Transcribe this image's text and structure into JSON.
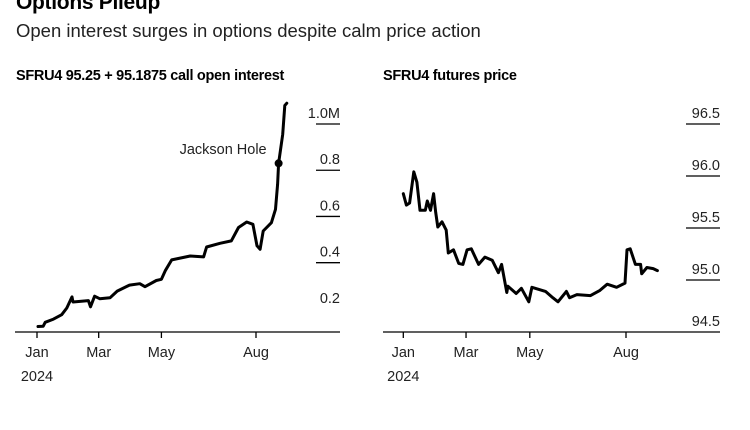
{
  "title": "Options Pileup",
  "subtitle": "Open interest surges in options despite calm price action",
  "chart_data": [
    {
      "type": "line",
      "title": "SFRU4 95.25 + 95.1875 call open interest",
      "x_tick_labels": [
        "Jan",
        "Mar",
        "May",
        "Aug"
      ],
      "x_ticks": [
        "2024-01-01",
        "2024-03-01",
        "2024-05-01",
        "2024-08-01"
      ],
      "year_label": "2024",
      "y_tick_labels": [
        "0.2",
        "0.4",
        "0.6",
        "0.8",
        "1.0M"
      ],
      "y_ticks": [
        0.2,
        0.4,
        0.6,
        0.8,
        1.0
      ],
      "ylim": [
        0.1,
        1.1
      ],
      "xlim": [
        "2023-12-20",
        "2024-10-05"
      ],
      "unit": "M",
      "color": "#000000",
      "annotation": {
        "label": "Jackson Hole",
        "date": "2024-08-23",
        "value": 0.83
      },
      "x": [
        "2024-01-02",
        "2024-01-07",
        "2024-01-09",
        "2024-01-17",
        "2024-01-25",
        "2024-01-30",
        "2024-02-04",
        "2024-02-05",
        "2024-02-20",
        "2024-02-22",
        "2024-02-26",
        "2024-03-02",
        "2024-03-12",
        "2024-03-19",
        "2024-03-31",
        "2024-04-10",
        "2024-04-15",
        "2024-04-26",
        "2024-05-01",
        "2024-05-05",
        "2024-05-11",
        "2024-05-29",
        "2024-06-11",
        "2024-06-14",
        "2024-06-27",
        "2024-07-08",
        "2024-07-15",
        "2024-07-23",
        "2024-07-29",
        "2024-08-02",
        "2024-08-05",
        "2024-08-08",
        "2024-08-16",
        "2024-08-20",
        "2024-08-22",
        "2024-08-23",
        "2024-08-27",
        "2024-08-29",
        "2024-08-31"
      ],
      "values": [
        0.124,
        0.125,
        0.142,
        0.156,
        0.175,
        0.204,
        0.252,
        0.23,
        0.236,
        0.209,
        0.255,
        0.244,
        0.248,
        0.277,
        0.303,
        0.309,
        0.296,
        0.323,
        0.328,
        0.367,
        0.412,
        0.429,
        0.425,
        0.468,
        0.484,
        0.494,
        0.552,
        0.576,
        0.566,
        0.473,
        0.458,
        0.537,
        0.573,
        0.631,
        0.739,
        0.83,
        0.955,
        1.08,
        1.09
      ]
    },
    {
      "type": "line",
      "title": "SFRU4 futures price",
      "x_tick_labels": [
        "Jan",
        "Mar",
        "May",
        "Aug"
      ],
      "x_ticks": [
        "2024-01-01",
        "2024-03-01",
        "2024-05-01",
        "2024-08-01"
      ],
      "year_label": "2024",
      "y_tick_labels": [
        "94.5",
        "95.0",
        "95.5",
        "96.0",
        "96.5"
      ],
      "y_ticks": [
        94.5,
        95.0,
        95.5,
        96.0,
        96.5
      ],
      "ylim": [
        94.5,
        96.6
      ],
      "xlim": [
        "2023-12-18",
        "2024-10-03"
      ],
      "color": "#000000",
      "x": [
        "2024-01-01",
        "2024-01-04",
        "2024-01-07",
        "2024-01-11",
        "2024-01-14",
        "2024-01-17",
        "2024-01-22",
        "2024-01-24",
        "2024-01-27",
        "2024-01-30",
        "2024-02-01",
        "2024-02-03",
        "2024-02-07",
        "2024-02-11",
        "2024-02-13",
        "2024-02-18",
        "2024-02-23",
        "2024-02-27",
        "2024-03-02",
        "2024-03-06",
        "2024-03-13",
        "2024-03-19",
        "2024-03-26",
        "2024-04-01",
        "2024-04-04",
        "2024-04-09",
        "2024-04-10",
        "2024-04-18",
        "2024-04-23",
        "2024-04-30",
        "2024-05-03",
        "2024-05-16",
        "2024-05-23",
        "2024-05-28",
        "2024-06-05",
        "2024-06-08",
        "2024-06-15",
        "2024-06-28",
        "2024-07-07",
        "2024-07-14",
        "2024-07-23",
        "2024-07-31",
        "2024-08-02",
        "2024-08-05",
        "2024-08-10",
        "2024-08-15",
        "2024-08-16",
        "2024-08-21",
        "2024-08-27",
        "2024-08-31"
      ],
      "values": [
        95.83,
        95.72,
        95.74,
        96.04,
        95.94,
        95.67,
        95.67,
        95.76,
        95.67,
        95.83,
        95.65,
        95.51,
        95.56,
        95.48,
        95.26,
        95.29,
        95.16,
        95.15,
        95.29,
        95.3,
        95.15,
        95.22,
        95.19,
        95.07,
        95.15,
        94.88,
        94.94,
        94.87,
        94.92,
        94.79,
        94.93,
        94.89,
        94.83,
        94.79,
        94.89,
        94.83,
        94.86,
        94.85,
        94.9,
        94.96,
        94.93,
        94.97,
        95.29,
        95.3,
        95.15,
        95.15,
        95.06,
        95.12,
        95.11,
        95.09
      ]
    }
  ]
}
